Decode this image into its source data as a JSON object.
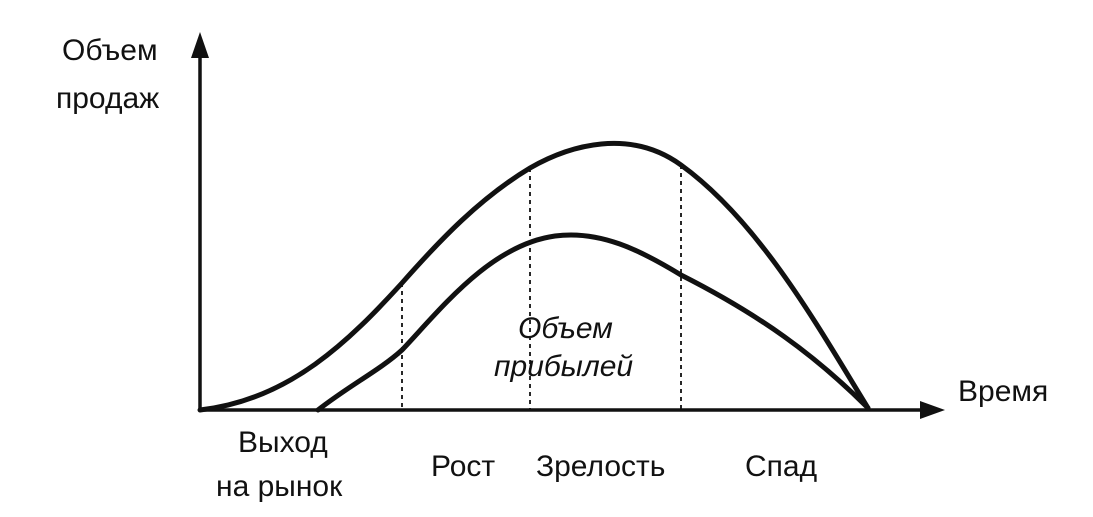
{
  "y_axis": {
    "label_line1": "Объем",
    "label_line2": "продаж"
  },
  "x_axis": {
    "label": "Время"
  },
  "inner_label": {
    "line1": "Объем",
    "line2": "прибылей"
  },
  "stages": [
    {
      "line1": "Выход",
      "line2": "на рынок"
    },
    {
      "line1": "Рост"
    },
    {
      "line1": "Зрелость"
    },
    {
      "line1": "Спад"
    }
  ],
  "colors": {
    "ink": "#111111",
    "background": "#ffffff"
  }
}
